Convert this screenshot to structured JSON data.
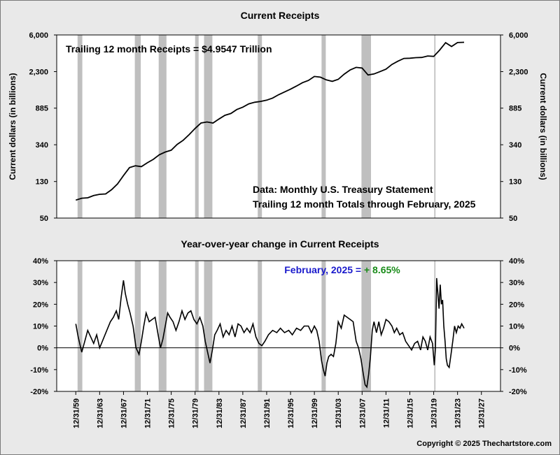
{
  "chart_data": [
    {
      "type": "line",
      "title": "Current Receipts",
      "ylabel": "Current dollars (in billions)",
      "yscale": "log",
      "ylim": [
        50,
        6000
      ],
      "yticks": [
        "6,000",
        "2,300",
        "885",
        "340",
        "130",
        "50"
      ],
      "ytick_values": [
        6000,
        2300,
        885,
        340,
        130,
        50
      ],
      "annotations": {
        "trailing": "Trailing 12 month Receipts = $4.9547 Trillion",
        "source_line1": "Data:  Monthly U.S. Treasury Statement",
        "source_line2": "Trailing 12 month Totals through February, 2025"
      },
      "series": [
        {
          "x": [
            1960.0,
            1961.0,
            1962.0,
            1963.0,
            1964.0,
            1965.0,
            1966.0,
            1967.0,
            1968.0,
            1969.0,
            1970.0,
            1971.0,
            1972.0,
            1973.0,
            1974.0,
            1975.0,
            1976.0,
            1977.0,
            1978.0,
            1979.0,
            1980.0,
            1981.0,
            1982.0,
            1983.0,
            1984.0,
            1985.0,
            1986.0,
            1987.0,
            1988.0,
            1989.0,
            1990.0,
            1991.0,
            1992.0,
            1993.0,
            1994.0,
            1995.0,
            1996.0,
            1997.0,
            1998.0,
            1999.0,
            2000.0,
            2001.0,
            2002.0,
            2003.0,
            2004.0,
            2005.0,
            2006.0,
            2007.0,
            2008.0,
            2009.0,
            2010.0,
            2011.0,
            2012.0,
            2013.0,
            2014.0,
            2015.0,
            2016.0,
            2017.0,
            2018.0,
            2019.0,
            2020.0,
            2021.0,
            2022.0,
            2023.0,
            2024.0,
            2025.1
          ],
          "values": [
            80,
            84,
            85,
            90,
            93,
            94,
            105,
            122,
            152,
            187,
            196,
            192,
            212,
            232,
            262,
            281,
            295,
            343,
            382,
            443,
            520,
            600,
            617,
            600,
            666,
            734,
            769,
            854,
            909,
            991,
            1032,
            1055,
            1090,
            1153,
            1258,
            1352,
            1453,
            1579,
            1722,
            1827,
            2025,
            1991,
            1853,
            1782,
            1880,
            2153,
            2407,
            2568,
            2524,
            2105,
            2163,
            2304,
            2450,
            2775,
            3021,
            3250,
            3267,
            3316,
            3330,
            3464,
            3421,
            4047,
            4896,
            4441,
            4919,
            4955
          ]
        }
      ]
    },
    {
      "type": "line",
      "title": "Year-over-year change in Current Receipts",
      "ylim": [
        -20,
        40
      ],
      "yticks": [
        "40%",
        "30%",
        "20%",
        "10%",
        "0%",
        "-10%",
        "-20%"
      ],
      "ytick_values": [
        40,
        30,
        20,
        10,
        0,
        -10,
        -20
      ],
      "annotation_prefix": "February, 2025 = ",
      "annotation_value": "+ 8.65%",
      "colors": {
        "annotation_prefix": "#1a1acc",
        "annotation_value": "#1a8c1a"
      },
      "series": [
        {
          "x": [
            1960.0,
            1960.4,
            1961.0,
            1961.5,
            1962.0,
            1962.5,
            1963.0,
            1963.5,
            1964.0,
            1964.6,
            1965.2,
            1965.8,
            1966.3,
            1966.8,
            1967.2,
            1967.6,
            1968.0,
            1968.3,
            1968.7,
            1969.1,
            1969.6,
            1970.1,
            1970.6,
            1971.0,
            1971.4,
            1971.8,
            1972.3,
            1972.8,
            1973.3,
            1973.8,
            1974.2,
            1974.6,
            1975.0,
            1975.4,
            1975.8,
            1976.3,
            1976.8,
            1977.3,
            1977.8,
            1978.3,
            1978.8,
            1979.3,
            1979.8,
            1980.3,
            1980.8,
            1981.3,
            1981.7,
            1982.1,
            1982.5,
            1982.9,
            1983.3,
            1983.7,
            1984.2,
            1984.7,
            1985.2,
            1985.7,
            1986.2,
            1986.7,
            1987.2,
            1987.7,
            1988.2,
            1988.7,
            1989.2,
            1989.7,
            1990.2,
            1990.7,
            1991.2,
            1991.7,
            1992.3,
            1993.0,
            1993.7,
            1994.3,
            1995.0,
            1995.7,
            1996.3,
            1997.0,
            1997.7,
            1998.3,
            1999.0,
            1999.5,
            2000.0,
            2000.4,
            2000.8,
            2001.2,
            2001.5,
            2001.8,
            2002.1,
            2002.4,
            2002.8,
            2003.2,
            2003.6,
            2004.0,
            2004.5,
            2005.0,
            2005.5,
            2006.0,
            2006.5,
            2007.0,
            2007.4,
            2007.8,
            2008.2,
            2008.5,
            2008.8,
            2009.1,
            2009.4,
            2009.7,
            2010.0,
            2010.4,
            2010.8,
            2011.2,
            2011.6,
            2012.0,
            2012.5,
            2013.0,
            2013.4,
            2013.8,
            2014.3,
            2014.8,
            2015.3,
            2015.8,
            2016.3,
            2016.8,
            2017.3,
            2017.8,
            2018.2,
            2018.6,
            2019.0,
            2019.4,
            2019.8,
            2020.1,
            2020.3,
            2020.5,
            2020.7,
            2020.9,
            2021.1,
            2021.3,
            2021.5,
            2021.7,
            2021.9,
            2022.1,
            2022.3,
            2022.6,
            2022.9,
            2023.2,
            2023.5,
            2023.8,
            2024.1,
            2024.4,
            2024.7,
            2025.1
          ],
          "values": [
            11,
            5,
            -2,
            3,
            8,
            5,
            2,
            6,
            0,
            4,
            8,
            12,
            14,
            17,
            13,
            23,
            31,
            25,
            20,
            16,
            10,
            0,
            -3,
            3,
            10,
            16,
            12,
            13,
            14,
            6,
            0,
            4,
            10,
            16,
            14,
            12,
            8,
            12,
            17,
            13,
            16,
            17,
            13,
            11,
            14,
            10,
            3,
            -2,
            -7,
            -1,
            6,
            8,
            11,
            5,
            8,
            6,
            10,
            5,
            11,
            10,
            7,
            9,
            7,
            11,
            5,
            2,
            1,
            3,
            6,
            8,
            7,
            9,
            7,
            8,
            6,
            9,
            8,
            10,
            10,
            7,
            10,
            8,
            3,
            -6,
            -10,
            -13,
            -7,
            -4,
            -3,
            -4,
            2,
            12,
            9,
            15,
            14,
            13,
            12,
            3,
            0,
            -5,
            -12,
            -17,
            -18,
            -12,
            -4,
            8,
            12,
            7,
            12,
            6,
            9,
            13,
            12,
            10,
            7,
            9,
            6,
            7,
            3,
            1,
            -1,
            2,
            3,
            -1,
            5,
            3,
            -1,
            5,
            2,
            -8,
            0,
            32,
            25,
            18,
            29,
            20,
            22,
            10,
            3,
            -5,
            -8,
            -9,
            -3,
            3,
            10,
            7,
            10,
            9,
            11,
            9
          ]
        }
      ]
    }
  ],
  "x_axis": {
    "ticks": [
      "12/31/59",
      "12/31/63",
      "12/31/67",
      "12/31/71",
      "12/31/75",
      "12/31/79",
      "12/31/83",
      "12/31/87",
      "12/31/91",
      "12/31/95",
      "12/31/99",
      "12/31/03",
      "12/31/07",
      "12/31/11",
      "12/31/15",
      "12/31/19",
      "12/31/23",
      "12/31/27"
    ],
    "tick_years": [
      1960,
      1964,
      1968,
      1972,
      1976,
      1980,
      1984,
      1988,
      1992,
      1996,
      2000,
      2004,
      2008,
      2012,
      2016,
      2020,
      2024,
      2028
    ],
    "range": [
      1956.8,
      2031.2
    ]
  },
  "recessions": [
    [
      1960.3,
      1961.1
    ],
    [
      1969.9,
      1970.9
    ],
    [
      1973.9,
      1975.2
    ],
    [
      1980.0,
      1980.6
    ],
    [
      1981.5,
      1982.9
    ],
    [
      1990.5,
      1991.2
    ],
    [
      2001.2,
      2001.9
    ],
    [
      2007.9,
      2009.5
    ],
    [
      2020.1,
      2020.3
    ]
  ],
  "copyright": "Copyright © 2025 Thechartstore.com",
  "colors": {
    "line": "#000000",
    "recession": "#bfbfbf",
    "background": "#e9e9e9",
    "plot": "#ffffff"
  }
}
